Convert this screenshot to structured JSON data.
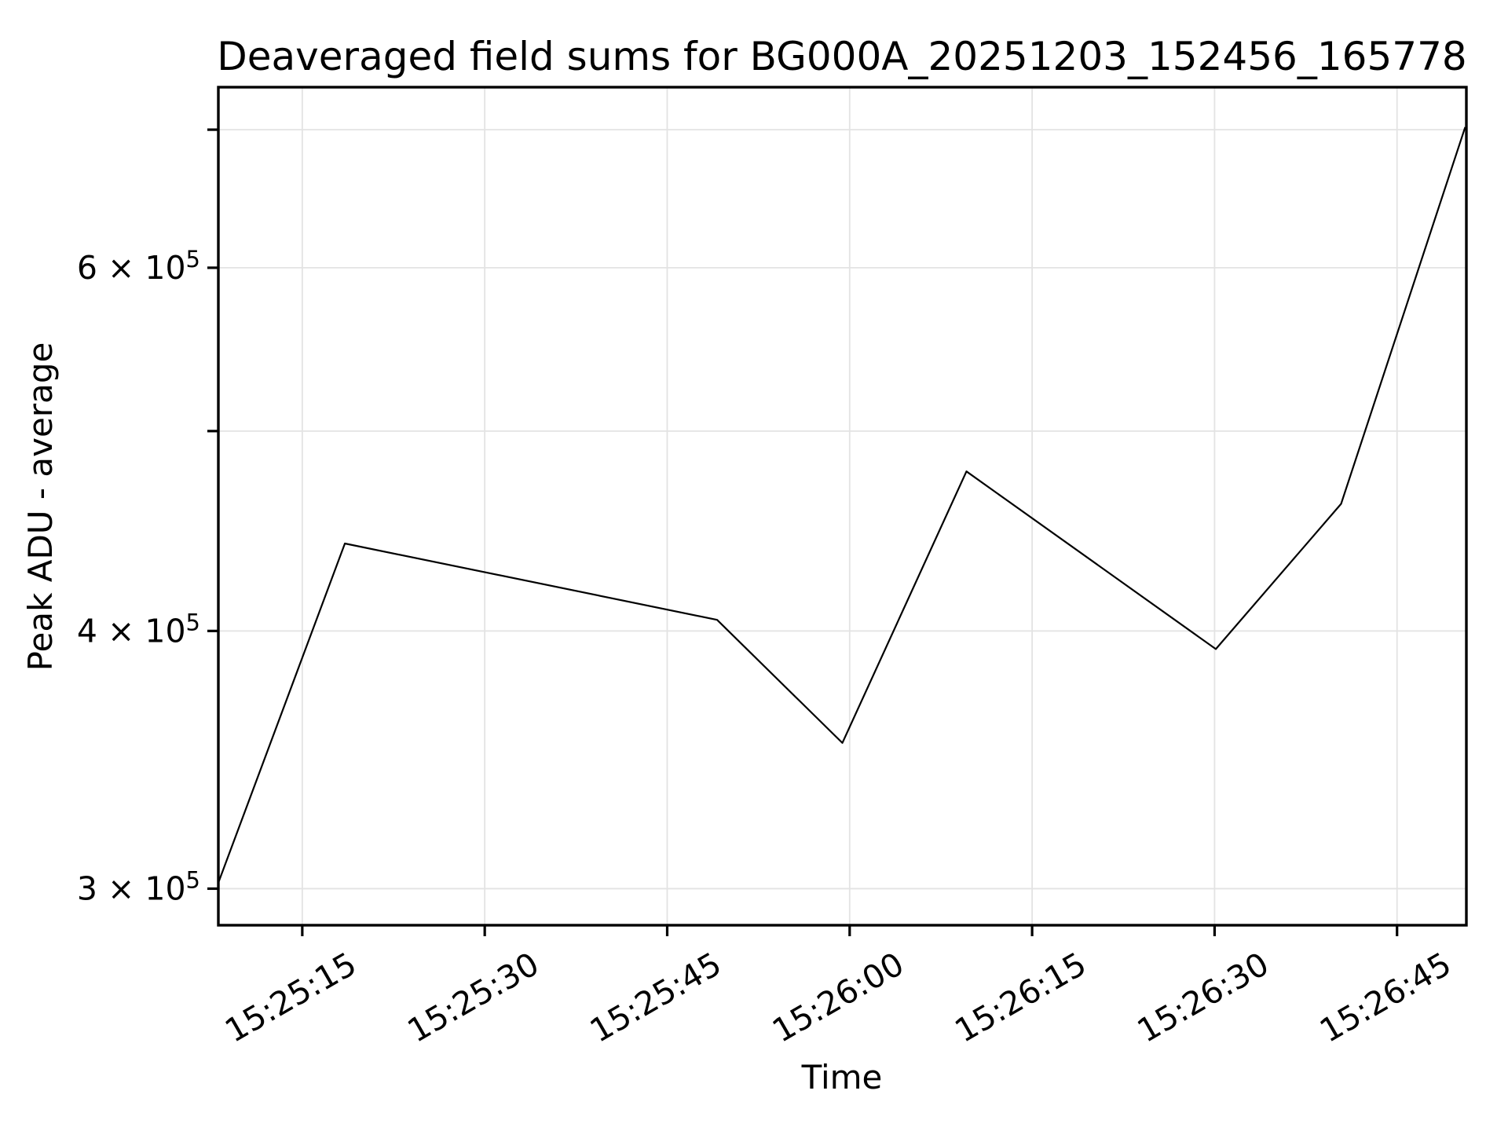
{
  "chart_data": {
    "type": "line",
    "title": "Deaveraged field sums for BG000A_20251203_152456_165778",
    "xlabel": "Time",
    "ylabel": "Peak ADU - average",
    "y_scale": "log",
    "grid": true,
    "legend": null,
    "line_color": "#000000",
    "grid_color": "#e3e3e3",
    "background_color": "#ffffff",
    "xlim_seconds": [
      8.1,
      110.7
    ],
    "ylim": [
      288000,
      734000
    ],
    "x_ticks": [
      {
        "label": "15:25:15",
        "seconds": 15
      },
      {
        "label": "15:25:30",
        "seconds": 30
      },
      {
        "label": "15:25:45",
        "seconds": 45
      },
      {
        "label": "15:26:00",
        "seconds": 60
      },
      {
        "label": "15:26:15",
        "seconds": 75
      },
      {
        "label": "15:26:30",
        "seconds": 90
      },
      {
        "label": "15:26:45",
        "seconds": 105
      }
    ],
    "y_ticks": [
      {
        "value": 300000,
        "label": "3 × 10⁵",
        "label_base": "3 × 10",
        "label_exp": "5"
      },
      {
        "value": 400000,
        "label": "4 × 10⁵",
        "label_base": "4 × 10",
        "label_exp": "5"
      },
      {
        "value": 500000,
        "label": "",
        "label_base": "",
        "label_exp": ""
      },
      {
        "value": 600000,
        "label": "6 × 10⁵",
        "label_base": "6 × 10",
        "label_exp": "5"
      },
      {
        "value": 700000,
        "label": "",
        "label_base": "",
        "label_exp": ""
      }
    ],
    "series": [
      {
        "name": "Peak ADU - average",
        "points": [
          {
            "time": "15:25:08",
            "seconds": 8.1,
            "value": 302000
          },
          {
            "time": "15:25:19",
            "seconds": 18.5,
            "value": 441000
          },
          {
            "time": "15:25:49",
            "seconds": 49.1,
            "value": 405000
          },
          {
            "time": "15:25:59",
            "seconds": 59.4,
            "value": 353000
          },
          {
            "time": "15:26:10",
            "seconds": 69.6,
            "value": 478000
          },
          {
            "time": "15:26:30",
            "seconds": 90.1,
            "value": 392000
          },
          {
            "time": "15:26:40",
            "seconds": 100.4,
            "value": 461000
          },
          {
            "time": "15:26:51",
            "seconds": 110.6,
            "value": 702000
          }
        ]
      }
    ]
  }
}
